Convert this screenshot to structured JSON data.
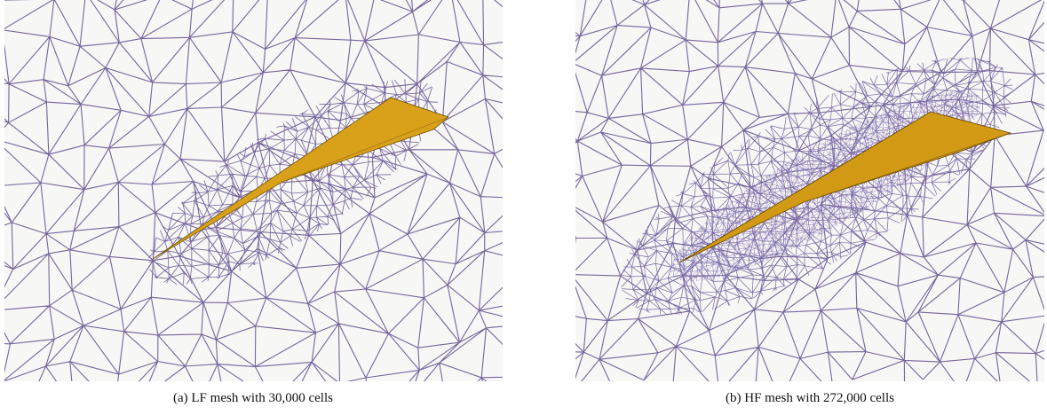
{
  "figure": {
    "panels": [
      {
        "caption": "(a) LF mesh with 30,000 cells"
      },
      {
        "caption": "(b) HF mesh with 272,000 cells"
      }
    ]
  }
}
